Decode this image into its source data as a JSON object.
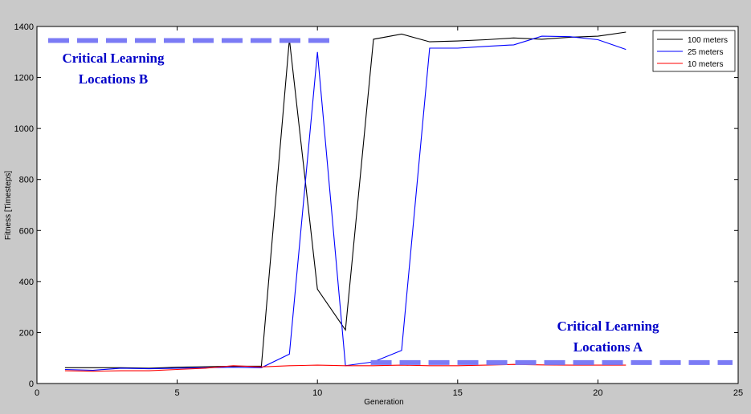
{
  "chart_data": {
    "type": "line",
    "title": "",
    "xlabel": "Generation",
    "ylabel": "Fitness [Timesteps]",
    "xlim": [
      0,
      25
    ],
    "ylim": [
      0,
      1400
    ],
    "xticks": [
      0,
      5,
      10,
      15,
      20,
      25
    ],
    "yticks": [
      0,
      200,
      400,
      600,
      800,
      1000,
      1200,
      1400
    ],
    "grid": false,
    "legend_position": "top-right",
    "series": [
      {
        "name": "100 meters",
        "color": "#000000",
        "x": [
          1,
          2,
          3,
          4,
          5,
          6,
          7,
          8,
          9,
          10,
          11,
          12,
          13,
          14,
          15,
          16,
          17,
          18,
          19,
          20,
          21
        ],
        "y": [
          62,
          62,
          62,
          60,
          64,
          66,
          68,
          68,
          1350,
          370,
          210,
          1350,
          1370,
          1340,
          1343,
          1348,
          1355,
          1350,
          1358,
          1362,
          1378
        ]
      },
      {
        "name": "25 meters",
        "color": "#0000ff",
        "x": [
          1,
          2,
          3,
          4,
          5,
          6,
          7,
          8,
          9,
          10,
          11,
          12,
          13,
          14,
          15,
          16,
          17,
          18,
          19,
          20,
          21
        ],
        "y": [
          55,
          52,
          60,
          58,
          60,
          62,
          64,
          62,
          115,
          1300,
          70,
          85,
          130,
          1315,
          1315,
          1322,
          1328,
          1362,
          1360,
          1348,
          1310
        ]
      },
      {
        "name": "10 meters",
        "color": "#ff0000",
        "x": [
          1,
          2,
          3,
          4,
          5,
          6,
          7,
          8,
          9,
          10,
          11,
          12,
          13,
          14,
          15,
          16,
          17,
          18,
          19,
          20,
          21
        ],
        "y": [
          50,
          48,
          50,
          50,
          55,
          60,
          70,
          65,
          70,
          72,
          70,
          70,
          72,
          70,
          70,
          72,
          75,
          73,
          72,
          72,
          72
        ]
      }
    ],
    "annotations": [
      {
        "line1": "Critical Learning",
        "line2": "Locations B",
        "level": 1345,
        "x_from": 0.4,
        "x_to": 10.7
      },
      {
        "line1": "Critical Learning",
        "line2": "Locations A",
        "level": 82,
        "x_from": 11.9,
        "x_to": 24.8
      }
    ],
    "annotation_color": "#0000c8",
    "dash_color": "#7b7bf5"
  }
}
